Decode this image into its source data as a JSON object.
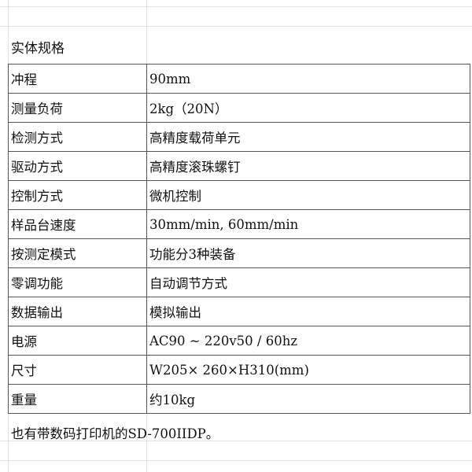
{
  "sheet": {
    "title": "实体规格",
    "rows": [
      {
        "label": "冲程",
        "value": "90mm"
      },
      {
        "label": "测量负荷",
        "value": "2kg（20N）"
      },
      {
        "label": "检测方式",
        "value": "高精度载荷单元"
      },
      {
        "label": "驱动方式",
        "value": "高精度滚珠螺钉"
      },
      {
        "label": "控制方式",
        "value": "微机控制"
      },
      {
        "label": "样品台速度",
        "value": "30mm/min, 60mm/min"
      },
      {
        "label": "按测定模式",
        "value": "功能分3种装备"
      },
      {
        "label": "零调功能",
        "value": "自动调节方式"
      },
      {
        "label": "数据输出",
        "value": "模拟输出"
      },
      {
        "label": "电源",
        "value": "AC90 ~ 220v50 / 60hz"
      },
      {
        "label": "尺寸",
        "value": "W205× 260×H310(mm)"
      },
      {
        "label": "重量",
        "value": "约10kg"
      }
    ],
    "note": "也有带数码打印机的SD-700IIDP。"
  }
}
